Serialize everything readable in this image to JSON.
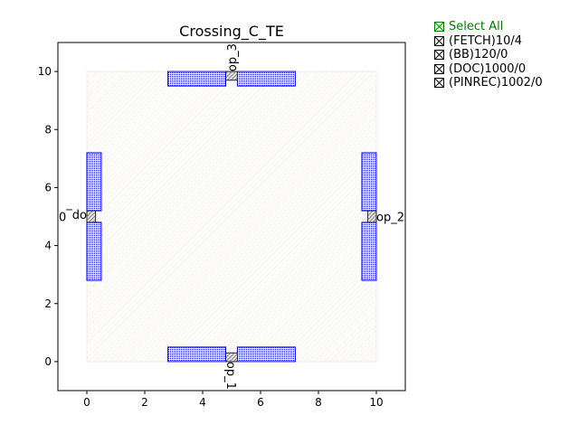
{
  "chart_data": {
    "type": "layout",
    "title": "Crossing_C_TE",
    "xlim": [
      -1,
      11
    ],
    "ylim": [
      -1,
      11
    ],
    "xticks": [
      0,
      2,
      4,
      6,
      8,
      10
    ],
    "yticks": [
      0,
      2,
      4,
      6,
      8,
      10
    ],
    "colors": {
      "bb": "#f4d7b8",
      "doc": "#0000cc",
      "pin": "#555555"
    },
    "bounding_box": {
      "x0": 0,
      "y0": 0,
      "x1": 10,
      "y1": 10
    },
    "doc_rects": [
      [
        2.8,
        9.5,
        4.8,
        10.0
      ],
      [
        5.2,
        9.5,
        7.2,
        10.0
      ],
      [
        2.8,
        0.0,
        4.8,
        0.5
      ],
      [
        5.2,
        0.0,
        7.2,
        0.5
      ],
      [
        0.0,
        2.8,
        0.5,
        4.8
      ],
      [
        0.0,
        5.2,
        0.5,
        7.2
      ],
      [
        9.5,
        2.8,
        10.0,
        4.8
      ],
      [
        9.5,
        5.2,
        10.0,
        7.2
      ]
    ],
    "pins": [
      {
        "name": "op_0",
        "rect": [
          0.0,
          4.8,
          0.3,
          5.2
        ],
        "side": "left"
      },
      {
        "name": "op_1",
        "rect": [
          4.8,
          0.0,
          5.2,
          0.3
        ],
        "side": "bottom"
      },
      {
        "name": "op_2",
        "rect": [
          9.7,
          4.8,
          10.0,
          5.2
        ],
        "side": "right"
      },
      {
        "name": "op_3",
        "rect": [
          4.8,
          9.7,
          5.2,
          10.0
        ],
        "side": "top"
      }
    ]
  },
  "legend": {
    "items": [
      "Select All",
      "(FETCH)10/4",
      "(BB)120/0",
      "(DOC)1000/0",
      "(PINREC)1002/0"
    ]
  }
}
